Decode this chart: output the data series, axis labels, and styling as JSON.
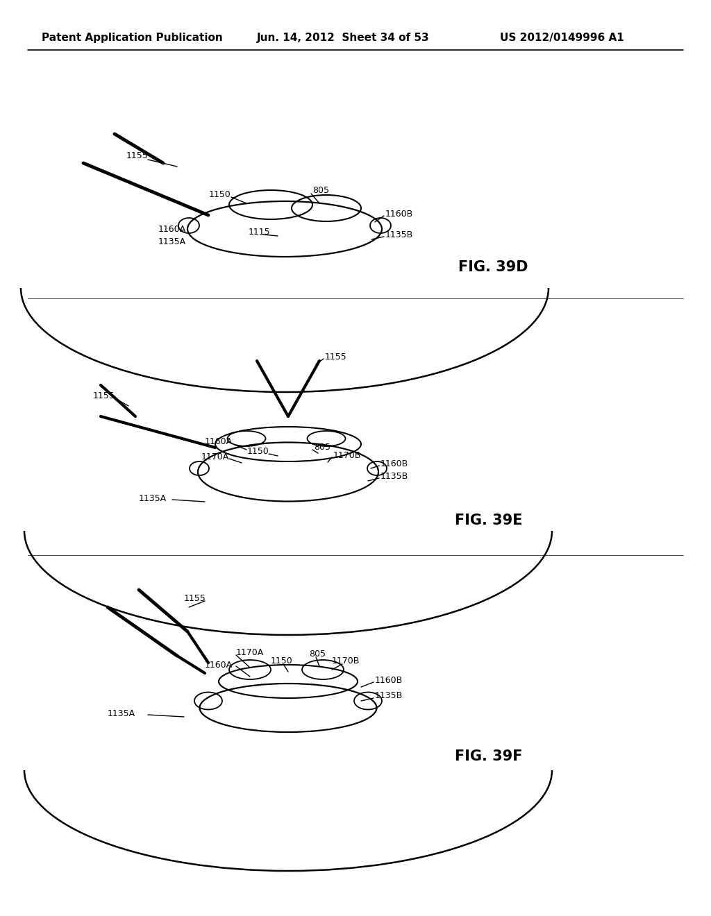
{
  "header_left": "Patent Application Publication",
  "header_center": "Jun. 14, 2012  Sheet 34 of 53",
  "header_right": "US 2012/0149996 A1",
  "background_color": "#ffffff",
  "line_color": "#000000",
  "text_color": "#000000",
  "fig_label_fontsize": 15,
  "label_fontsize": 9,
  "header_fontsize": 11
}
